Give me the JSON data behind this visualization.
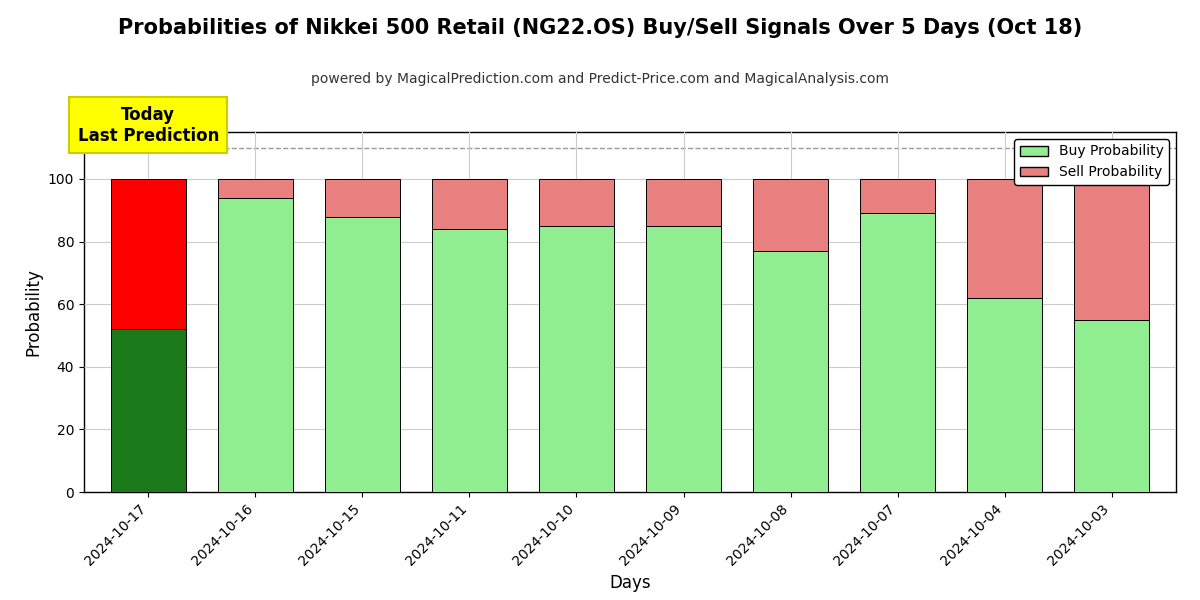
{
  "title": "Probabilities of Nikkei 500 Retail (NG22.OS) Buy/Sell Signals Over 5 Days (Oct 18)",
  "subtitle": "powered by MagicalPrediction.com and Predict-Price.com and MagicalAnalysis.com",
  "xlabel": "Days",
  "ylabel": "Probability",
  "dates": [
    "2024-10-17",
    "2024-10-16",
    "2024-10-15",
    "2024-10-11",
    "2024-10-10",
    "2024-10-09",
    "2024-10-08",
    "2024-10-07",
    "2024-10-04",
    "2024-10-03"
  ],
  "buy_values": [
    52,
    94,
    88,
    84,
    85,
    85,
    77,
    89,
    62,
    55
  ],
  "sell_values": [
    48,
    6,
    12,
    16,
    15,
    15,
    23,
    11,
    38,
    45
  ],
  "today_buy_color": "#1a7a1a",
  "today_sell_color": "#ff0000",
  "buy_color": "#90ee90",
  "sell_color": "#e88080",
  "today_annotation": "Today\nLast Prediction",
  "annotation_bg_color": "#ffff00",
  "annotation_text_color": "#000000",
  "dashed_line_y": 110,
  "ylim": [
    0,
    115
  ],
  "yticks": [
    0,
    20,
    40,
    60,
    80,
    100
  ],
  "grid_color": "#cccccc",
  "legend_labels": [
    "Buy Probability",
    "Sell Probability"
  ],
  "legend_buy_color": "#90ee90",
  "legend_sell_color": "#e88080",
  "bar_edge_color": "#000000",
  "bar_width": 0.7,
  "title_fontsize": 15,
  "subtitle_fontsize": 10,
  "axis_label_fontsize": 12,
  "tick_fontsize": 10,
  "background_color": "#ffffff",
  "plot_bg_color": "#ffffff"
}
